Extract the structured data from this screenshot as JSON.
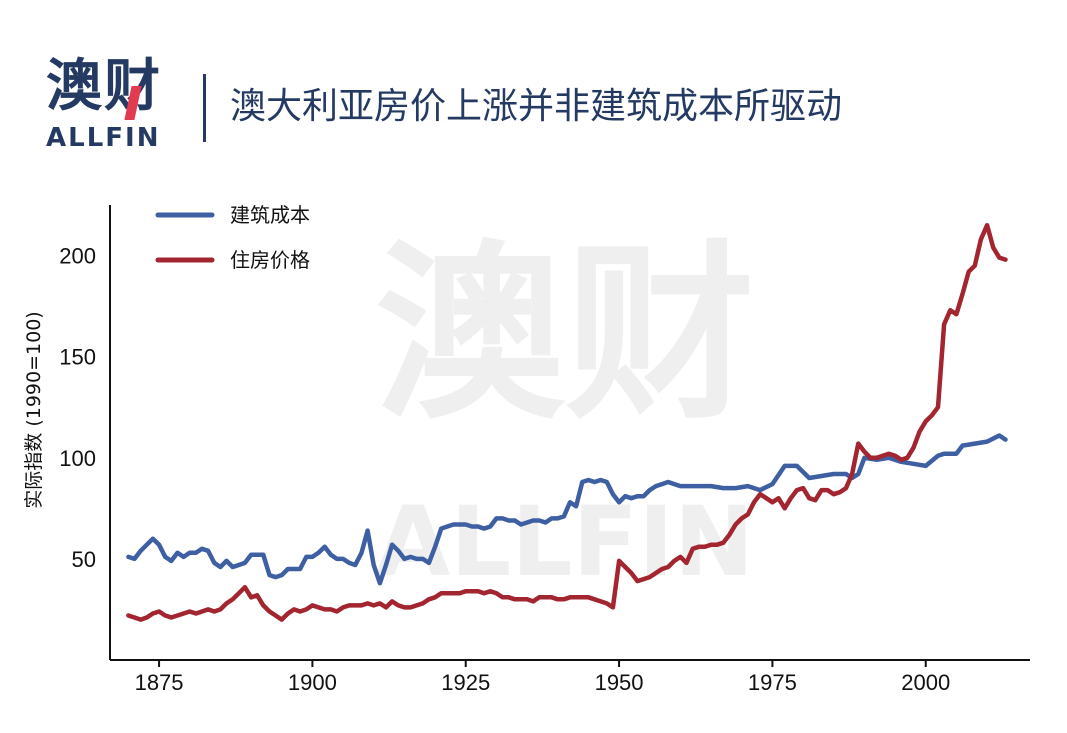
{
  "header": {
    "logo_cn": "澳财",
    "logo_en": "ALLFIN",
    "title": "澳大利亚房价上涨并非建筑成本所驱动"
  },
  "watermark": {
    "cn": "澳财",
    "en": "ALLFIN"
  },
  "colors": {
    "brand": "#243a63",
    "brand_accent": "#e23a4f",
    "construction": "#3f5fa3",
    "housing": "#a32530"
  },
  "chart_data": {
    "type": "line",
    "title": "澳大利亚房价上涨并非建筑成本所驱动",
    "xlabel": "",
    "ylabel": "实际指数 (1990=100)",
    "xlim": [
      1867,
      2017
    ],
    "ylim": [
      0,
      225
    ],
    "xticks": [
      1875,
      1900,
      1925,
      1950,
      1975,
      2000
    ],
    "yticks": [
      50,
      100,
      150,
      200
    ],
    "grid": false,
    "legend_position": "top-left",
    "series": [
      {
        "name": "建筑成本",
        "color": "#3f5fa3",
        "x": [
          1870,
          1871,
          1872,
          1873,
          1874,
          1875,
          1876,
          1877,
          1878,
          1879,
          1880,
          1881,
          1882,
          1883,
          1884,
          1885,
          1886,
          1887,
          1888,
          1889,
          1890,
          1891,
          1892,
          1893,
          1894,
          1895,
          1896,
          1897,
          1898,
          1899,
          1900,
          1901,
          1902,
          1903,
          1904,
          1905,
          1906,
          1907,
          1908,
          1909,
          1910,
          1911,
          1912,
          1913,
          1914,
          1915,
          1916,
          1917,
          1918,
          1919,
          1920,
          1921,
          1922,
          1923,
          1924,
          1925,
          1926,
          1927,
          1928,
          1929,
          1930,
          1931,
          1932,
          1933,
          1934,
          1935,
          1936,
          1937,
          1938,
          1939,
          1940,
          1941,
          1942,
          1943,
          1944,
          1945,
          1946,
          1947,
          1948,
          1949,
          1950,
          1951,
          1952,
          1953,
          1954,
          1955,
          1956,
          1957,
          1958,
          1959,
          1960,
          1962,
          1965,
          1967,
          1969,
          1971,
          1973,
          1975,
          1977,
          1979,
          1981,
          1983,
          1985,
          1987,
          1988,
          1989,
          1990,
          1992,
          1994,
          1996,
          1998,
          2000,
          2002,
          2003,
          2005,
          2006,
          2008,
          2010,
          2012,
          2013
        ],
        "y": [
          51,
          50,
          54,
          57,
          60,
          57,
          51,
          49,
          53,
          51,
          53,
          53,
          55,
          54,
          48,
          46,
          49,
          46,
          47,
          48,
          52,
          52,
          52,
          42,
          41,
          42,
          45,
          45,
          45,
          51,
          51,
          53,
          56,
          52,
          50,
          50,
          48,
          47,
          53,
          64,
          47,
          38,
          47,
          57,
          54,
          50,
          51,
          50,
          50,
          48,
          56,
          65,
          66,
          67,
          67,
          67,
          66,
          66,
          65,
          66,
          70,
          70,
          69,
          69,
          67,
          68,
          69,
          69,
          68,
          70,
          70,
          71,
          78,
          76,
          88,
          89,
          88,
          89,
          88,
          82,
          78,
          81,
          80,
          81,
          81,
          84,
          86,
          87,
          88,
          87,
          86,
          86,
          86,
          85,
          85,
          86,
          84,
          87,
          96,
          96,
          90,
          91,
          92,
          92,
          90,
          92,
          100,
          99,
          100,
          98,
          97,
          96,
          101,
          102,
          102,
          106,
          107,
          108,
          111,
          109
        ]
      },
      {
        "name": "住房价格",
        "color": "#a32530",
        "x": [
          1870,
          1871,
          1872,
          1873,
          1874,
          1875,
          1876,
          1877,
          1878,
          1879,
          1880,
          1881,
          1882,
          1883,
          1884,
          1885,
          1886,
          1887,
          1888,
          1889,
          1890,
          1891,
          1892,
          1893,
          1894,
          1895,
          1896,
          1897,
          1898,
          1899,
          1900,
          1901,
          1902,
          1903,
          1904,
          1905,
          1906,
          1907,
          1908,
          1909,
          1910,
          1911,
          1912,
          1913,
          1914,
          1915,
          1916,
          1917,
          1918,
          1919,
          1920,
          1921,
          1922,
          1923,
          1924,
          1925,
          1926,
          1927,
          1928,
          1929,
          1930,
          1931,
          1932,
          1933,
          1934,
          1935,
          1936,
          1937,
          1938,
          1939,
          1940,
          1941,
          1942,
          1943,
          1944,
          1945,
          1946,
          1947,
          1948,
          1949,
          1950,
          1951,
          1952,
          1953,
          1954,
          1955,
          1956,
          1957,
          1958,
          1959,
          1960,
          1961,
          1962,
          1963,
          1964,
          1965,
          1966,
          1967,
          1968,
          1969,
          1970,
          1971,
          1972,
          1973,
          1974,
          1975,
          1976,
          1977,
          1978,
          1979,
          1980,
          1981,
          1982,
          1983,
          1984,
          1985,
          1986,
          1987,
          1988,
          1989,
          1990,
          1991,
          1992,
          1993,
          1994,
          1995,
          1996,
          1997,
          1998,
          1999,
          2000,
          2001,
          2002,
          2003,
          2004,
          2005,
          2006,
          2007,
          2008,
          2009,
          2010,
          2011,
          2012,
          2013
        ],
        "y": [
          22,
          21,
          20,
          21,
          23,
          24,
          22,
          21,
          22,
          23,
          24,
          23,
          24,
          25,
          24,
          25,
          28,
          30,
          33,
          36,
          31,
          32,
          27,
          24,
          22,
          20,
          23,
          25,
          24,
          25,
          27,
          26,
          25,
          25,
          24,
          26,
          27,
          27,
          27,
          28,
          27,
          28,
          26,
          29,
          27,
          26,
          26,
          27,
          28,
          30,
          31,
          33,
          33,
          33,
          33,
          34,
          34,
          34,
          33,
          34,
          33,
          31,
          31,
          30,
          30,
          30,
          29,
          31,
          31,
          31,
          30,
          30,
          31,
          31,
          31,
          31,
          30,
          29,
          28,
          26,
          49,
          46,
          43,
          39,
          40,
          41,
          43,
          45,
          46,
          49,
          51,
          48,
          55,
          56,
          56,
          57,
          57,
          58,
          62,
          67,
          70,
          72,
          78,
          82,
          80,
          78,
          80,
          75,
          80,
          84,
          85,
          80,
          79,
          84,
          84,
          82,
          83,
          85,
          92,
          107,
          103,
          100,
          100,
          101,
          102,
          101,
          99,
          100,
          105,
          113,
          118,
          121,
          125,
          166,
          173,
          171,
          181,
          192,
          195,
          208,
          215,
          204,
          199,
          198
        ]
      }
    ]
  }
}
